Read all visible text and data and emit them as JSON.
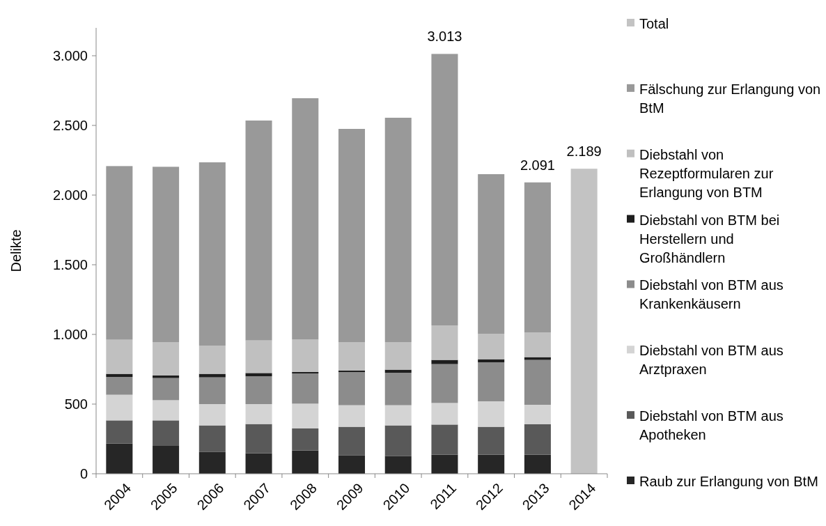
{
  "chart_data": {
    "type": "bar",
    "stacked": true,
    "ylabel": "Delikte",
    "categories": [
      "2004",
      "2005",
      "2006",
      "2007",
      "2008",
      "2009",
      "2010",
      "2011",
      "2012",
      "2013",
      "2014"
    ],
    "series": [
      {
        "name": "Raub zur Erlangung von BtM",
        "color": "#262626",
        "values": [
          217,
          200,
          158,
          147,
          167,
          133,
          128,
          137,
          137,
          137,
          null
        ]
      },
      {
        "name": "Diebstahl von BTM aus Apotheken",
        "color": "#595959",
        "values": [
          166,
          183,
          189,
          210,
          158,
          204,
          219,
          216,
          200,
          218,
          null
        ]
      },
      {
        "name": "Diebstahl von BTM aus Arztpraxen",
        "color": "#d4d4d4",
        "values": [
          184,
          145,
          153,
          143,
          178,
          155,
          145,
          155,
          183,
          140,
          null
        ]
      },
      {
        "name": "Diebstahl von BTM aus Krankenkäusern",
        "color": "#8c8c8c",
        "values": [
          128,
          159,
          192,
          200,
          217,
          238,
          233,
          279,
          280,
          322,
          null
        ]
      },
      {
        "name": "Diebstahl von BTM bei Herstellern und Großhändlern",
        "color": "#1e1e1e",
        "values": [
          22,
          18,
          25,
          23,
          10,
          10,
          22,
          30,
          22,
          20,
          null
        ]
      },
      {
        "name": "Diebstahl von Rezeptformularen zur Erlangung von BTM",
        "color": "#c0c0c0",
        "values": [
          245,
          240,
          203,
          234,
          233,
          205,
          198,
          248,
          183,
          176,
          null
        ]
      },
      {
        "name": "Fälschung zur Erlangung von BtM",
        "color": "#999999",
        "values": [
          1246,
          1258,
          1315,
          1578,
          1732,
          1530,
          1610,
          1948,
          1145,
          1078,
          null
        ]
      },
      {
        "name": "Total",
        "color": "#c3c3c3",
        "values": [
          null,
          null,
          null,
          null,
          null,
          null,
          null,
          null,
          null,
          null,
          2189
        ]
      }
    ],
    "totals": [
      null,
      null,
      null,
      null,
      null,
      null,
      null,
      "3.013",
      null,
      "2.091",
      "2.189"
    ],
    "ylim": [
      0,
      3200
    ],
    "yticks": [
      0,
      500,
      {
        "value": 1000,
        "label": "1.000"
      },
      {
        "value": 1500,
        "label": "1.500"
      },
      {
        "value": 2000,
        "label": "2.000"
      },
      {
        "value": 2500,
        "label": "2.500"
      },
      {
        "value": 3000,
        "label": "3.000"
      }
    ],
    "legend": "right",
    "grid": false
  }
}
